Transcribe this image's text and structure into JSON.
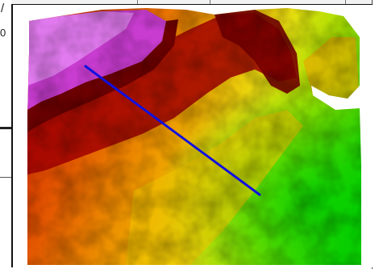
{
  "background": {
    "fragment_text": "0",
    "fragment_glyph": "/"
  },
  "map": {
    "type": "shaded-relief elevation raster",
    "color_ramp": [
      "#00d400",
      "#aee600",
      "#f2ea00",
      "#f3b000",
      "#ee6a00",
      "#d81a00",
      "#8a0000",
      "#c030c8",
      "#e070ee"
    ],
    "nodata_color": "#ffffff",
    "profile_line_color": "#1010e0"
  }
}
